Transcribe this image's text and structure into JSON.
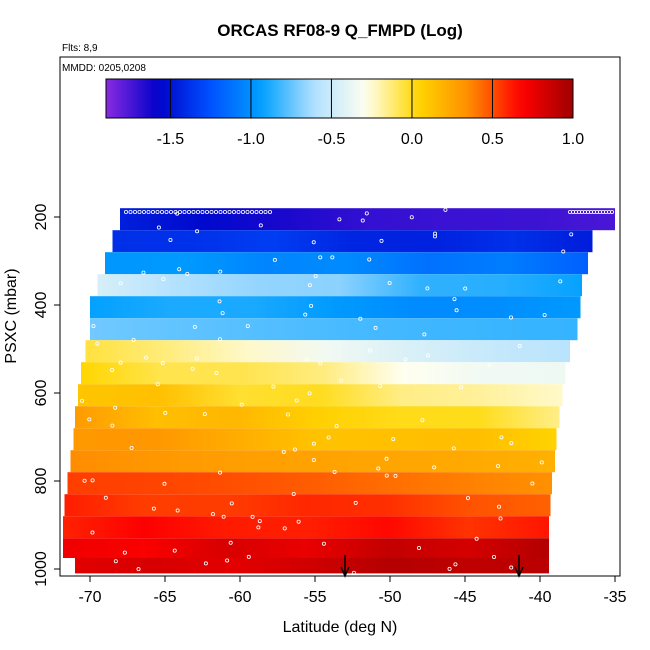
{
  "chart_data": {
    "type": "heatmap",
    "title": "ORCAS RF08-9 Q_FMPD (Log)",
    "flights_note": "Flts: 8,9",
    "dates_note": "MMDD: 0205,0208",
    "xlabel": "Latitude (deg N)",
    "ylabel": "PSXC (mbar)",
    "xlim": [
      -72,
      -35
    ],
    "ylim": [
      1000,
      80
    ],
    "x_ticks": [
      -70,
      -65,
      -60,
      -55,
      -50,
      -45,
      -40,
      -35
    ],
    "y_ticks": [
      200,
      400,
      600,
      800,
      1000
    ],
    "colorbar": {
      "range": [
        -1.9,
        1.0
      ],
      "ticks": [
        -1.5,
        -1.0,
        -0.5,
        0.0,
        0.5,
        1.0
      ],
      "tick_labels": [
        "-1.5",
        "-1.0",
        "-0.5",
        "0.0",
        "0.5",
        "1.0"
      ],
      "colors": [
        "#8a2be2",
        "#0000c8",
        "#0050ff",
        "#00a0ff",
        "#b0e0ff",
        "#fffff0",
        "#ffd700",
        "#ff8c00",
        "#ff0000",
        "#a00000"
      ]
    },
    "pressure_bands": [
      {
        "p_top": 180,
        "p_bot": 230,
        "lat_min": -68,
        "lat_max": -35,
        "v_start": -1.5,
        "v_end": -1.8
      },
      {
        "p_top": 230,
        "p_bot": 280,
        "lat_min": -68.5,
        "lat_max": -36.5,
        "v_start": -1.35,
        "v_end": -1.45
      },
      {
        "p_top": 280,
        "p_bot": 330,
        "lat_min": -69,
        "lat_max": -36.8,
        "v_start": -0.95,
        "v_end": -1.15
      },
      {
        "p_top": 330,
        "p_bot": 380,
        "lat_min": -69.5,
        "lat_max": -37.2,
        "v_start": -0.5,
        "v_end": -0.95
      },
      {
        "p_top": 380,
        "p_bot": 430,
        "lat_min": -70,
        "lat_max": -37.3,
        "v_start": -0.9,
        "v_end": -1.0
      },
      {
        "p_top": 430,
        "p_bot": 480,
        "lat_min": -70,
        "lat_max": -37.5,
        "v_start": -0.7,
        "v_end": -0.8
      },
      {
        "p_top": 480,
        "p_bot": 530,
        "lat_min": -70.3,
        "lat_max": -38,
        "v_start": -0.1,
        "v_end": -0.55
      },
      {
        "p_top": 530,
        "p_bot": 580,
        "lat_min": -70.6,
        "lat_max": -38.3,
        "v_start": 0.05,
        "v_end": -0.4
      },
      {
        "p_top": 580,
        "p_bot": 630,
        "lat_min": -70.8,
        "lat_max": -38.5,
        "v_start": 0.15,
        "v_end": -0.25
      },
      {
        "p_top": 630,
        "p_bot": 680,
        "lat_min": -71,
        "lat_max": -38.7,
        "v_start": 0.25,
        "v_end": -0.1
      },
      {
        "p_top": 680,
        "p_bot": 730,
        "lat_min": -71.1,
        "lat_max": -38.9,
        "v_start": 0.3,
        "v_end": 0.05
      },
      {
        "p_top": 730,
        "p_bot": 780,
        "lat_min": -71.3,
        "lat_max": -39,
        "v_start": 0.4,
        "v_end": 0.15
      },
      {
        "p_top": 780,
        "p_bot": 830,
        "lat_min": -71.5,
        "lat_max": -39.2,
        "v_start": 0.5,
        "v_end": 0.35
      },
      {
        "p_top": 830,
        "p_bot": 880,
        "lat_min": -71.7,
        "lat_max": -39.3,
        "v_start": 0.6,
        "v_end": 0.5
      },
      {
        "p_top": 880,
        "p_bot": 930,
        "lat_min": -71.8,
        "lat_max": -39.4,
        "v_start": 0.65,
        "v_end": 0.6
      },
      {
        "p_top": 930,
        "p_bot": 975,
        "lat_min": -71.8,
        "lat_max": -39.4,
        "v_start": 0.7,
        "v_end": 0.9
      },
      {
        "p_top": 975,
        "p_bot": 1010,
        "lat_min": -71,
        "lat_max": -39.4,
        "v_start": 0.75,
        "v_end": 0.95
      }
    ],
    "arrows_lat": [
      -53,
      -41.4
    ],
    "grid": false,
    "legend": "none"
  }
}
